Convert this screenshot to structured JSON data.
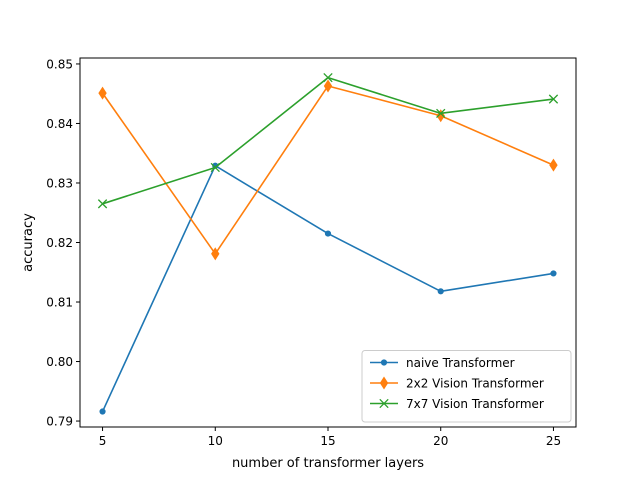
{
  "chart_data": {
    "type": "line",
    "title": "",
    "xlabel": "number of transformer layers",
    "ylabel": "accuracy",
    "x": [
      5,
      10,
      15,
      20,
      25
    ],
    "x_ticks": [
      5,
      10,
      15,
      20,
      25
    ],
    "y_ticks": [
      0.79,
      0.8,
      0.81,
      0.82,
      0.83,
      0.84,
      0.85
    ],
    "xlim": [
      4,
      26
    ],
    "ylim": [
      0.789,
      0.851
    ],
    "grid": false,
    "legend_position": "lower-right",
    "series": [
      {
        "name": "naive Transformer",
        "values": [
          0.7916,
          0.8329,
          0.8215,
          0.8118,
          0.8148
        ],
        "color": "#1f77b4",
        "marker": "point"
      },
      {
        "name": "2x2 Vision Transformer",
        "values": [
          0.8451,
          0.8181,
          0.8463,
          0.8413,
          0.833
        ],
        "color": "#ff7f0e",
        "marker": "thin-diamond"
      },
      {
        "name": "7x7 Vision Transformer",
        "values": [
          0.8265,
          0.8326,
          0.8477,
          0.8417,
          0.8441
        ],
        "color": "#2ca02c",
        "marker": "x"
      }
    ]
  }
}
